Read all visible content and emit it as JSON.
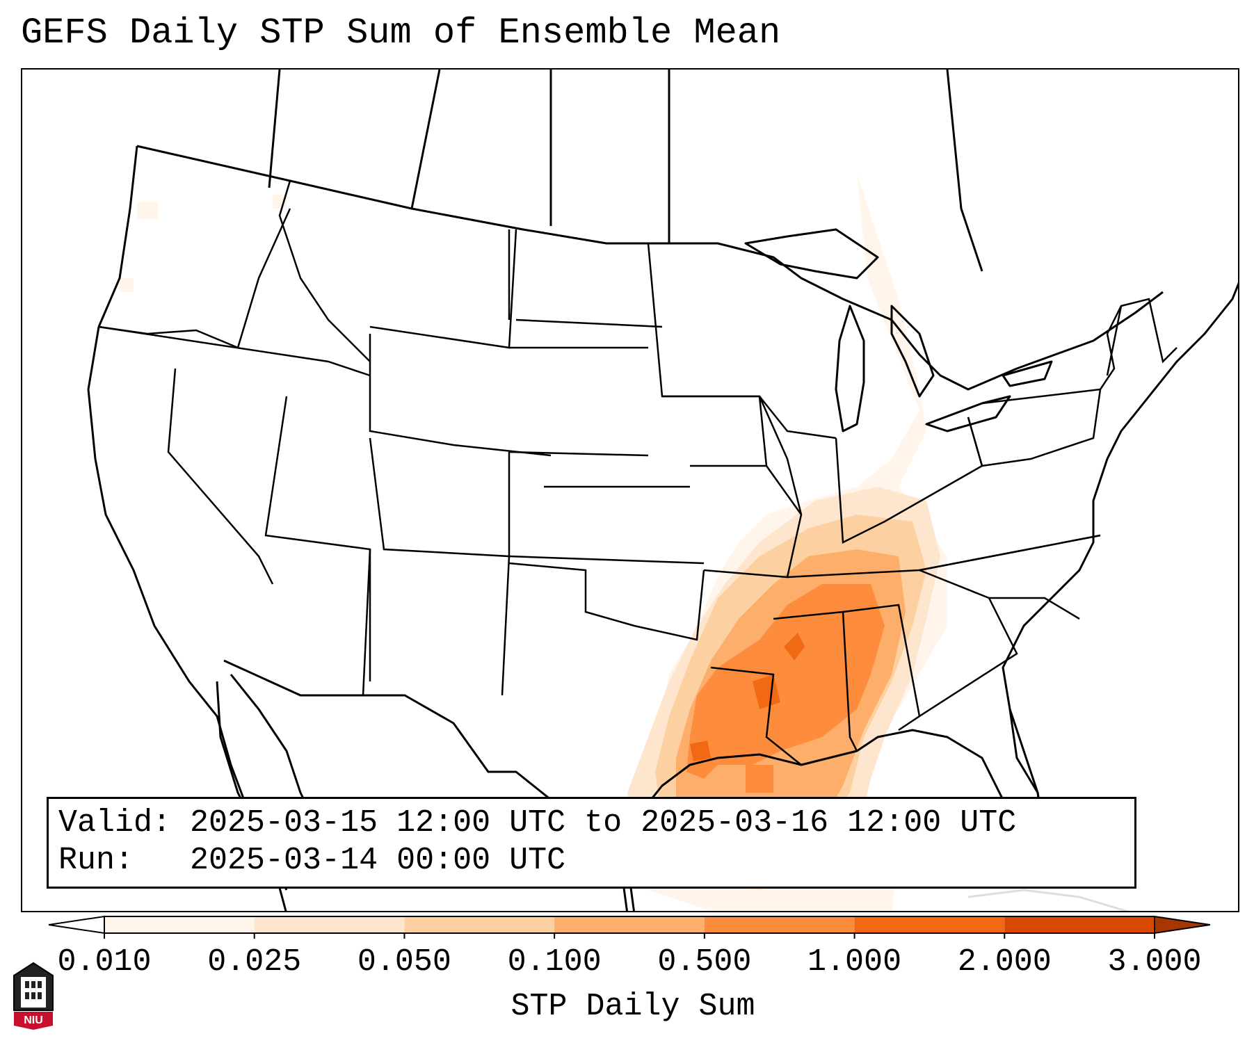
{
  "title": "GEFS Daily STP Sum of Ensemble Mean",
  "info": {
    "valid_line": "Valid: 2025-03-15 12:00 UTC to 2025-03-16 12:00 UTC",
    "run_line": "Run:   2025-03-14 00:00 UTC"
  },
  "colorbar": {
    "label": "STP Daily Sum",
    "ticks": [
      "0.010",
      "0.025",
      "0.050",
      "0.100",
      "0.500",
      "1.000",
      "2.000",
      "3.000"
    ],
    "colors": [
      "#fff5eb",
      "#fee6ce",
      "#fdd0a2",
      "#fdae6b",
      "#fd8d3c",
      "#f16913",
      "#d94801",
      "#a63603"
    ],
    "extend": "both"
  },
  "legend_colors": {
    "under": "#ffffff",
    "over": "#a63603"
  },
  "map": {
    "region": "Contiguous United States",
    "max_area": "Lower Mississippi Valley / Gulf Coast",
    "stp_areas": [
      {
        "name": "Louisiana-Mississippi-Alabama core",
        "level": "1.000"
      },
      {
        "name": "East Texas to Tennessee Valley",
        "level": "0.500"
      },
      {
        "name": "Gulf of Mexico coastal waters",
        "level": "0.100"
      },
      {
        "name": "Ohio Valley to Michigan",
        "level": "0.010"
      }
    ]
  },
  "logo": {
    "text": "NIU"
  }
}
